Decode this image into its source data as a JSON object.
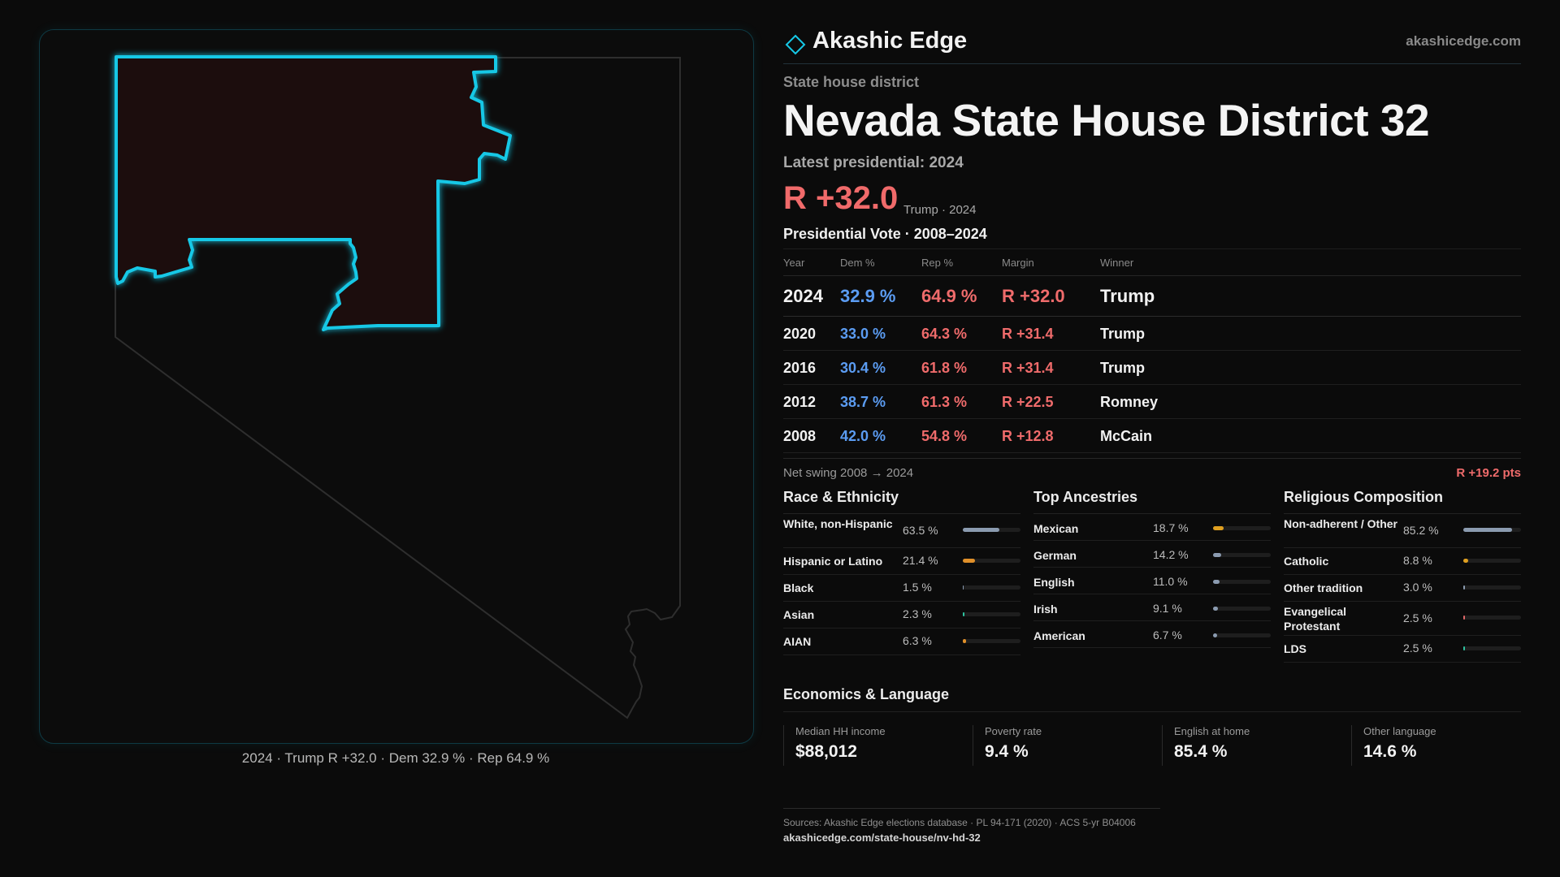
{
  "brand": {
    "name": "Akashic Edge",
    "url": "akashicedge.com"
  },
  "header": {
    "eyebrow": "State house district",
    "title": "Nevada State House District 32",
    "latest": "Latest presidential: 2024",
    "margin": "R +32.0",
    "margin_sub": "Trump · 2024"
  },
  "votes": {
    "heading": "Presidential Vote · 2008–2024",
    "columns": [
      "Year",
      "Dem %",
      "Rep %",
      "Margin",
      "Winner"
    ],
    "rows": [
      [
        "2024",
        "32.9 %",
        "64.9 %",
        "R +32.0",
        "Trump"
      ],
      [
        "2020",
        "33.0 %",
        "64.3 %",
        "R +31.4",
        "Trump"
      ],
      [
        "2016",
        "30.4 %",
        "61.8 %",
        "R +31.4",
        "Trump"
      ],
      [
        "2012",
        "38.7 %",
        "61.3 %",
        "R +22.5",
        "Romney"
      ],
      [
        "2008",
        "42.0 %",
        "54.8 %",
        "R +12.8",
        "McCain"
      ]
    ]
  },
  "swing": {
    "label": "Net swing 2008 → 2024",
    "value": "R +19.2 pts"
  },
  "race": {
    "title": "Race & Ethnicity",
    "items": [
      {
        "label": "White, non-Hispanic",
        "value": "63.5 %",
        "share": 0.635,
        "color": "#8b9bb0"
      },
      {
        "label": "Hispanic or Latino",
        "value": "21.4 %",
        "share": 0.214,
        "color": "#e0902a"
      },
      {
        "label": "Black",
        "value": "1.5 %",
        "share": 0.015,
        "color": "#8b9bb0"
      },
      {
        "label": "Asian",
        "value": "2.3 %",
        "share": 0.023,
        "color": "#2ec4a0"
      },
      {
        "label": "AIAN",
        "value": "6.3 %",
        "share": 0.063,
        "color": "#e0902a"
      }
    ]
  },
  "ancestry": {
    "title": "Top Ancestries",
    "items": [
      {
        "label": "Mexican",
        "value": "18.7 %",
        "share": 0.187,
        "color": "#e0a020"
      },
      {
        "label": "German",
        "value": "14.2 %",
        "share": 0.142,
        "color": "#8b9bb0"
      },
      {
        "label": "English",
        "value": "11.0 %",
        "share": 0.11,
        "color": "#8b9bb0"
      },
      {
        "label": "Irish",
        "value": "9.1 %",
        "share": 0.091,
        "color": "#8b9bb0"
      },
      {
        "label": "American",
        "value": "6.7 %",
        "share": 0.067,
        "color": "#8b9bb0"
      }
    ]
  },
  "religion": {
    "title": "Religious Composition",
    "items": [
      {
        "label": "Non-adherent / Other",
        "value": "85.2 %",
        "share": 0.852,
        "color": "#8b9bb0"
      },
      {
        "label": "Catholic",
        "value": "8.8 %",
        "share": 0.088,
        "color": "#e0a020"
      },
      {
        "label": "Other tradition",
        "value": "3.0 %",
        "share": 0.03,
        "color": "#8b9bb0"
      },
      {
        "label": "Evangelical Protestant",
        "value": "2.5 %",
        "share": 0.025,
        "color": "#e06868"
      },
      {
        "label": "LDS",
        "value": "2.5 %",
        "share": 0.025,
        "color": "#2ec4a0"
      }
    ]
  },
  "economics": {
    "title": "Economics & Language",
    "cards": [
      {
        "label": "Median HH income",
        "value": "$88,012"
      },
      {
        "label": "Poverty rate",
        "value": "9.4 %"
      },
      {
        "label": "English at home",
        "value": "85.4 %"
      },
      {
        "label": "Other language",
        "value": "14.6 %"
      }
    ]
  },
  "map": {
    "caption": "2024 · Trump R +32.0 · Dem 32.9 % · Rep 64.9 %",
    "highlight_color": "#16c8e6"
  },
  "sources": {
    "line": "Sources: Akashic Edge elections database · PL 94-171 (2020) · ACS 5-yr B04006",
    "url": "akashicedge.com/state-house/nv-hd-32"
  }
}
